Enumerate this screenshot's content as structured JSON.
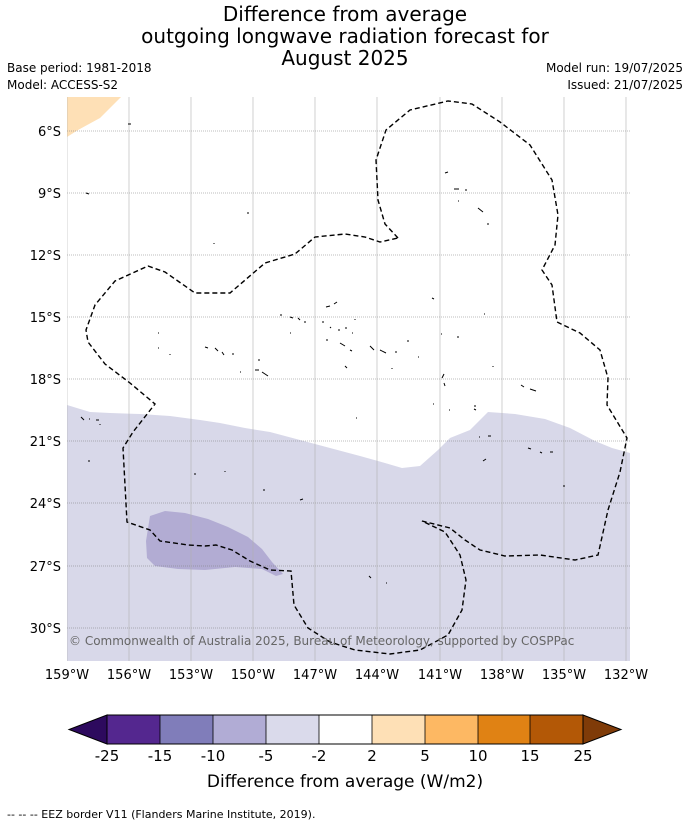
{
  "title": {
    "line1": "Difference from average",
    "line2": "outgoing longwave radiation forecast for",
    "line3": "August 2025"
  },
  "meta": {
    "base_period": "Base period: 1981-2018",
    "model": "Model: ACCESS-S2",
    "model_run": "Model run: 19/07/2025",
    "issued": "Issued: 21/07/2025"
  },
  "map": {
    "lat_labels": [
      "6°S",
      "9°S",
      "12°S",
      "15°S",
      "18°S",
      "21°S",
      "24°S",
      "27°S",
      "30°S"
    ],
    "lon_labels": [
      "159°W",
      "156°W",
      "153°W",
      "150°W",
      "147°W",
      "144°W",
      "141°W",
      "138°W",
      "135°W",
      "132°W"
    ],
    "copyright": "© Commonwealth of Australia 2025, Bureau of Meteorology, supported by COSPPac"
  },
  "colorbar": {
    "ticks": [
      "-25",
      "-15",
      "-10",
      "-5",
      "-2",
      "2",
      "5",
      "10",
      "15",
      "25"
    ],
    "colors": [
      "#2d0a5e",
      "#54278f",
      "#807dba",
      "#b1acd5",
      "#dadaeb",
      "#ffffff",
      "#fee0b6",
      "#fdb863",
      "#e08214",
      "#b35806",
      "#7f3b08"
    ],
    "title": "Difference from average (W/m2)"
  },
  "footer": "--  --  -- EEZ border V11 (Flanders Marine Institute, 2019)."
}
